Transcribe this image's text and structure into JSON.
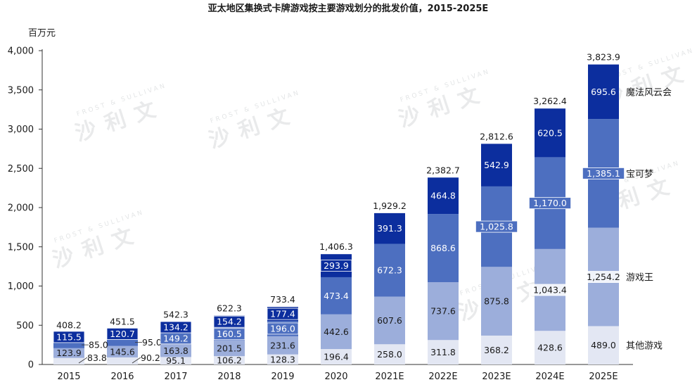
{
  "chart_data": {
    "type": "bar",
    "stacked": true,
    "title": "亚太地区集换式卡牌游戏按主要游戏划分的批发价值，2015-2025E",
    "unit_label": "百万元",
    "ylim": [
      0,
      4000
    ],
    "yticks": [
      "0",
      "500",
      "1,000",
      "1,500",
      "2,000",
      "2,500",
      "3,000",
      "3,500",
      "4,000"
    ],
    "categories": [
      "2015",
      "2016",
      "2017",
      "2018",
      "2019",
      "2020",
      "2021E",
      "2022E",
      "2023E",
      "2024E",
      "2025E"
    ],
    "series": [
      {
        "name": "其他游戏",
        "color": "#e3e7f3",
        "text_color": "#1a1a1a",
        "values": [
          83.8,
          90.2,
          95.1,
          106.2,
          128.3,
          196.4,
          258.0,
          311.8,
          368.2,
          428.6,
          489.0
        ],
        "labels": [
          "83.8",
          "90.2",
          "95.1",
          "106.2",
          "128.3",
          "196.4",
          "258.0",
          "311.8",
          "368.2",
          "428.6",
          "489.0"
        ]
      },
      {
        "name": "游戏王",
        "color": "#9caedb",
        "text_color": "#1a1a1a",
        "values": [
          123.9,
          145.6,
          163.8,
          201.5,
          231.6,
          442.6,
          607.6,
          737.6,
          875.8,
          1043.4,
          1254.2
        ],
        "labels": [
          "123.9",
          "145.6",
          "163.8",
          "201.5",
          "231.6",
          "442.6",
          "607.6",
          "737.6",
          "875.8",
          "1,043.4",
          "1,254.2"
        ]
      },
      {
        "name": "宝可梦",
        "color": "#4d6fc0",
        "text_color": "#ffffff",
        "values": [
          85.0,
          95.0,
          149.2,
          160.5,
          196.0,
          473.4,
          672.3,
          868.6,
          1025.8,
          1170.0,
          1385.1
        ],
        "labels": [
          "85.0",
          "95.0",
          "149.2",
          "160.5",
          "196.0",
          "473.4",
          "672.3",
          "868.6",
          "1,025.8",
          "1,170.0",
          "1,385.1"
        ]
      },
      {
        "name": "魔法风云会",
        "color": "#0c2e9e",
        "text_color": "#ffffff",
        "values": [
          115.5,
          120.7,
          134.2,
          154.2,
          177.4,
          293.9,
          391.3,
          464.8,
          542.9,
          620.5,
          695.6
        ],
        "labels": [
          "115.5",
          "120.7",
          "134.2",
          "154.2",
          "177.4",
          "293.9",
          "391.3",
          "464.8",
          "542.9",
          "620.5",
          "695.6"
        ]
      }
    ],
    "totals": [
      "408.2",
      "451.5",
      "542.3",
      "622.3",
      "733.4",
      "1,406.3",
      "1,929.2",
      "2,382.7",
      "2,812.6",
      "3,262.4",
      "3,823.9"
    ],
    "legend_placement": "right",
    "grid": false
  },
  "watermark": {
    "text": "沙利文",
    "sub": "FROST & SULLIVAN"
  }
}
